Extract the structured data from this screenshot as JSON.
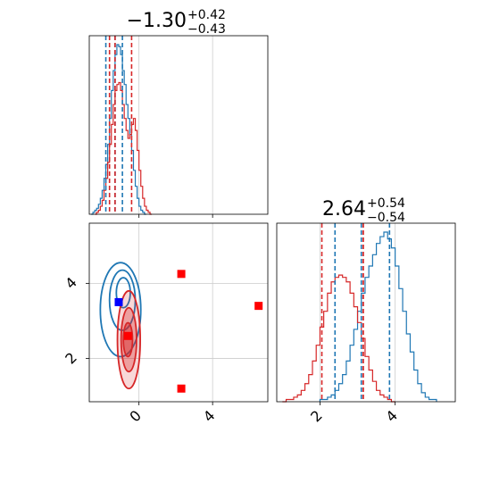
{
  "chart_data": {
    "type": "corner",
    "parameters": [
      {
        "name": "",
        "range": [
          -2.7,
          7.0
        ],
        "ticks": [
          0,
          4
        ],
        "tick_labels": [
          "0",
          "4"
        ]
      },
      {
        "name": "",
        "range": [
          0.85,
          5.6
        ],
        "ticks": [
          2,
          4
        ],
        "tick_labels": [
          "2",
          "4"
        ]
      }
    ],
    "titles": [
      {
        "median": "−1.30",
        "plus": "+0.42",
        "minus": "−0.43"
      },
      {
        "median": "2.64",
        "plus": "+0.54",
        "minus": "−0.54"
      }
    ],
    "grid": true,
    "series": [
      {
        "color": "#1f77b4",
        "quantiles_p1": [
          -1.8,
          -1.3,
          -0.9
        ],
        "quantiles_p2": [
          2.4,
          3.1,
          3.85
        ],
        "hist_p1": {
          "bin_start": -2.6,
          "bin_width": 0.1,
          "counts": [
            0,
            1,
            2,
            3,
            5,
            8,
            12,
            18,
            25,
            35,
            48,
            62,
            72,
            80,
            85,
            84,
            80,
            72,
            65,
            55,
            48,
            40,
            32,
            22,
            14,
            8,
            4,
            2,
            1,
            0
          ]
        },
        "hist_p2": {
          "bin_start": 2.0,
          "bin_width": 0.1,
          "counts": [
            1,
            1,
            2,
            3,
            5,
            8,
            12,
            18,
            25,
            32,
            40,
            48,
            55,
            60,
            65,
            70,
            73,
            75,
            72,
            68,
            60,
            50,
            40,
            30,
            22,
            14,
            8,
            4,
            2,
            1,
            1
          ]
        },
        "contours": [
          {
            "cx": -0.85,
            "cy": 3.75,
            "rx": 0.38,
            "ry": 0.4
          },
          {
            "cx": -0.9,
            "cy": 3.55,
            "rx": 0.7,
            "ry": 0.8
          },
          {
            "cx": -1.0,
            "cy": 3.3,
            "rx": 1.1,
            "ry": 1.25
          }
        ]
      },
      {
        "color": "#d62728",
        "quantiles_p1": [
          -1.6,
          -1.3,
          -0.4
        ],
        "quantiles_p2": [
          2.05,
          3.15,
          3.15
        ],
        "hist_p1": {
          "bin_start": -2.4,
          "bin_width": 0.1,
          "counts": [
            0,
            1,
            2,
            4,
            7,
            12,
            18,
            26,
            35,
            45,
            55,
            62,
            65,
            66,
            62,
            55,
            48,
            42,
            38,
            40,
            45,
            48,
            42,
            32,
            22,
            14,
            8,
            4,
            2,
            1,
            0
          ]
        },
        "hist_p2": {
          "bin_start": 1.0,
          "bin_width": 0.1,
          "counts": [
            0,
            1,
            1,
            2,
            3,
            5,
            8,
            12,
            18,
            25,
            33,
            40,
            48,
            53,
            55,
            56,
            55,
            53,
            48,
            42,
            35,
            28,
            20,
            14,
            9,
            5,
            3,
            2,
            1,
            0
          ]
        },
        "contours": [
          {
            "cx": -0.6,
            "cy": 2.5,
            "rx": 0.25,
            "ry": 0.45
          },
          {
            "cx": -0.55,
            "cy": 2.5,
            "rx": 0.42,
            "ry": 0.85
          },
          {
            "cx": -0.55,
            "cy": 2.5,
            "rx": 0.62,
            "ry": 1.3
          }
        ]
      }
    ],
    "markers": [
      {
        "x": 2.3,
        "y": 4.25,
        "color": "#ff0000"
      },
      {
        "x": 6.5,
        "y": 3.4,
        "color": "#ff0000"
      },
      {
        "x": -0.6,
        "y": 2.6,
        "color": "#ff0000"
      },
      {
        "x": 2.3,
        "y": 1.2,
        "color": "#ff0000"
      },
      {
        "x": -1.1,
        "y": 3.5,
        "color": "#0000ff"
      }
    ]
  }
}
